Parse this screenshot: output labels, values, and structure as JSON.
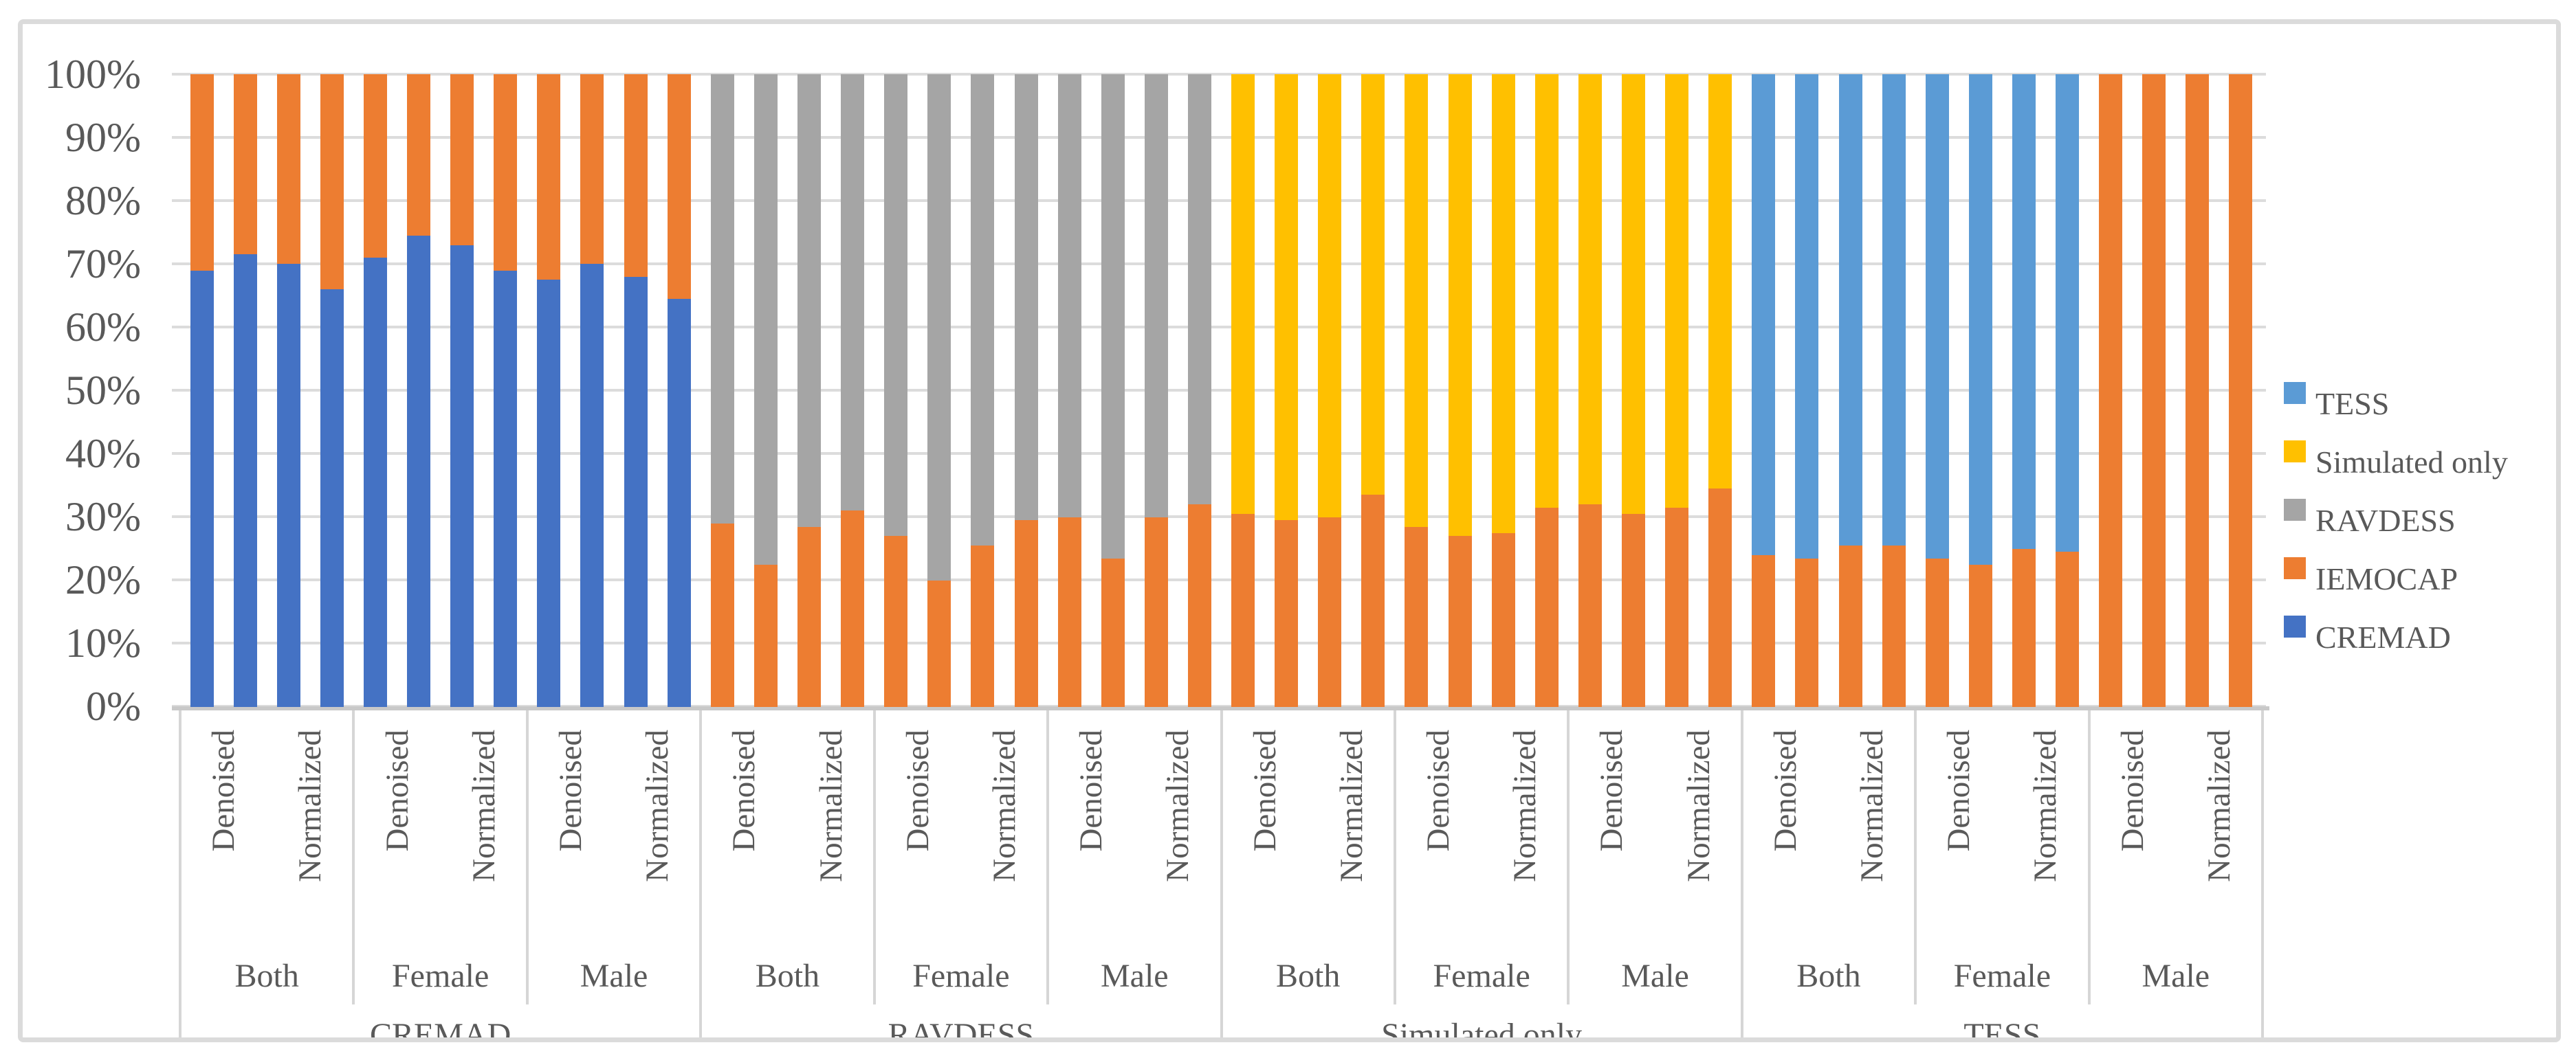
{
  "figure": {
    "background": "#FFFFFF",
    "frame_color": "#DBDBDB",
    "gridline_color": "#DCDCDC",
    "axis_line_color": "#C9C9C9",
    "text_color": "#595959"
  },
  "chart_data": {
    "type": "bar",
    "subtype": "100%-stacked-columns",
    "title": "",
    "xlabel": "",
    "ylabel": "",
    "grid": true,
    "y_axis": {
      "min": 0,
      "max": 100,
      "ticks": [
        "0%",
        "10%",
        "20%",
        "30%",
        "40%",
        "50%",
        "60%",
        "70%",
        "80%",
        "90%",
        "100%"
      ]
    },
    "legend": {
      "position": "right",
      "entries": [
        {
          "label": "TESS",
          "color": "#5B9BD5"
        },
        {
          "label": "Simulated only",
          "color": "#FFC000"
        },
        {
          "label": "RAVDESS",
          "color": "#A5A5A5"
        },
        {
          "label": "IEMOCAP",
          "color": "#ED7D31"
        },
        {
          "label": "CREMAD",
          "color": "#4472C4"
        }
      ]
    },
    "stack_order": [
      "CREMAD",
      "IEMOCAP",
      "RAVDESS",
      "Simulated only",
      "TESS"
    ],
    "colors": {
      "CREMAD": "#4472C4",
      "IEMOCAP": "#ED7D31",
      "RAVDESS": "#A5A5A5",
      "Simulated only": "#FFC000",
      "TESS": "#5B9BD5"
    },
    "x_axis_levels": [
      "condition",
      "gender",
      "dataset"
    ],
    "groups": [
      {
        "dataset": "CREMAD",
        "subgroups": [
          {
            "gender": "Both",
            "conditions": [
              {
                "condition": "Denoised",
                "bars": [
                  {
                    "CREMAD": 69,
                    "IEMOCAP": 31
                  },
                  {
                    "CREMAD": 71.5,
                    "IEMOCAP": 28.5
                  }
                ]
              },
              {
                "condition": "Normalized",
                "bars": [
                  {
                    "CREMAD": 70,
                    "IEMOCAP": 30
                  },
                  {
                    "CREMAD": 66,
                    "IEMOCAP": 34
                  }
                ]
              }
            ]
          },
          {
            "gender": "Female",
            "conditions": [
              {
                "condition": "Denoised",
                "bars": [
                  {
                    "CREMAD": 71,
                    "IEMOCAP": 29
                  },
                  {
                    "CREMAD": 74.5,
                    "IEMOCAP": 25.5
                  }
                ]
              },
              {
                "condition": "Normalized",
                "bars": [
                  {
                    "CREMAD": 73,
                    "IEMOCAP": 27
                  },
                  {
                    "CREMAD": 69,
                    "IEMOCAP": 31
                  }
                ]
              }
            ]
          },
          {
            "gender": "Male",
            "conditions": [
              {
                "condition": "Denoised",
                "bars": [
                  {
                    "CREMAD": 67.5,
                    "IEMOCAP": 32.5
                  },
                  {
                    "CREMAD": 70,
                    "IEMOCAP": 30
                  }
                ]
              },
              {
                "condition": "Normalized",
                "bars": [
                  {
                    "CREMAD": 68,
                    "IEMOCAP": 32
                  },
                  {
                    "CREMAD": 64.5,
                    "IEMOCAP": 35.5
                  }
                ]
              }
            ]
          }
        ]
      },
      {
        "dataset": "RAVDESS",
        "subgroups": [
          {
            "gender": "Both",
            "conditions": [
              {
                "condition": "Denoised",
                "bars": [
                  {
                    "IEMOCAP": 29,
                    "RAVDESS": 71
                  },
                  {
                    "IEMOCAP": 22.5,
                    "RAVDESS": 77.5
                  }
                ]
              },
              {
                "condition": "Normalized",
                "bars": [
                  {
                    "IEMOCAP": 28.5,
                    "RAVDESS": 71.5
                  },
                  {
                    "IEMOCAP": 31,
                    "RAVDESS": 69
                  }
                ]
              }
            ]
          },
          {
            "gender": "Female",
            "conditions": [
              {
                "condition": "Denoised",
                "bars": [
                  {
                    "IEMOCAP": 27,
                    "RAVDESS": 73
                  },
                  {
                    "IEMOCAP": 20,
                    "RAVDESS": 80
                  }
                ]
              },
              {
                "condition": "Normalized",
                "bars": [
                  {
                    "IEMOCAP": 25.5,
                    "RAVDESS": 74.5
                  },
                  {
                    "IEMOCAP": 29.5,
                    "RAVDESS": 70.5
                  }
                ]
              }
            ]
          },
          {
            "gender": "Male",
            "conditions": [
              {
                "condition": "Denoised",
                "bars": [
                  {
                    "IEMOCAP": 30,
                    "RAVDESS": 70
                  },
                  {
                    "IEMOCAP": 23.5,
                    "RAVDESS": 76.5
                  }
                ]
              },
              {
                "condition": "Normalized",
                "bars": [
                  {
                    "IEMOCAP": 30,
                    "RAVDESS": 70
                  },
                  {
                    "IEMOCAP": 32,
                    "RAVDESS": 68
                  }
                ]
              }
            ]
          }
        ]
      },
      {
        "dataset": "Simulated only",
        "subgroups": [
          {
            "gender": "Both",
            "conditions": [
              {
                "condition": "Denoised",
                "bars": [
                  {
                    "IEMOCAP": 30.5,
                    "Simulated only": 69.5
                  },
                  {
                    "IEMOCAP": 29.5,
                    "Simulated only": 70.5
                  }
                ]
              },
              {
                "condition": "Normalized",
                "bars": [
                  {
                    "IEMOCAP": 30,
                    "Simulated only": 70
                  },
                  {
                    "IEMOCAP": 33.5,
                    "Simulated only": 66.5
                  }
                ]
              }
            ]
          },
          {
            "gender": "Female",
            "conditions": [
              {
                "condition": "Denoised",
                "bars": [
                  {
                    "IEMOCAP": 28.5,
                    "Simulated only": 71.5
                  },
                  {
                    "IEMOCAP": 27,
                    "Simulated only": 73
                  }
                ]
              },
              {
                "condition": "Normalized",
                "bars": [
                  {
                    "IEMOCAP": 27.5,
                    "Simulated only": 72.5
                  },
                  {
                    "IEMOCAP": 31.5,
                    "Simulated only": 68.5
                  }
                ]
              }
            ]
          },
          {
            "gender": "Male",
            "conditions": [
              {
                "condition": "Denoised",
                "bars": [
                  {
                    "IEMOCAP": 32,
                    "Simulated only": 68
                  },
                  {
                    "IEMOCAP": 30.5,
                    "Simulated only": 69.5
                  }
                ]
              },
              {
                "condition": "Normalized",
                "bars": [
                  {
                    "IEMOCAP": 31.5,
                    "Simulated only": 68.5
                  },
                  {
                    "IEMOCAP": 34.5,
                    "Simulated only": 65.5
                  }
                ]
              }
            ]
          }
        ]
      },
      {
        "dataset": "TESS",
        "subgroups": [
          {
            "gender": "Both",
            "conditions": [
              {
                "condition": "Denoised",
                "bars": [
                  {
                    "IEMOCAP": 24,
                    "TESS": 76
                  },
                  {
                    "IEMOCAP": 23.5,
                    "TESS": 76.5
                  }
                ]
              },
              {
                "condition": "Normalized",
                "bars": [
                  {
                    "IEMOCAP": 25.5,
                    "TESS": 74.5
                  },
                  {
                    "IEMOCAP": 25.5,
                    "TESS": 74.5
                  }
                ]
              }
            ]
          },
          {
            "gender": "Female",
            "conditions": [
              {
                "condition": "Denoised",
                "bars": [
                  {
                    "IEMOCAP": 23.5,
                    "TESS": 76.5
                  },
                  {
                    "IEMOCAP": 22.5,
                    "TESS": 77.5
                  }
                ]
              },
              {
                "condition": "Normalized",
                "bars": [
                  {
                    "IEMOCAP": 25,
                    "TESS": 75
                  },
                  {
                    "IEMOCAP": 24.5,
                    "TESS": 75.5
                  }
                ]
              }
            ]
          },
          {
            "gender": "Male",
            "conditions": [
              {
                "condition": "Denoised",
                "bars": [
                  {
                    "IEMOCAP": 100,
                    "TESS": 0
                  },
                  {
                    "IEMOCAP": 100,
                    "TESS": 0
                  }
                ]
              },
              {
                "condition": "Normalized",
                "bars": [
                  {
                    "IEMOCAP": 100,
                    "TESS": 0
                  },
                  {
                    "IEMOCAP": 100,
                    "TESS": 0
                  }
                ]
              }
            ]
          }
        ]
      }
    ]
  }
}
